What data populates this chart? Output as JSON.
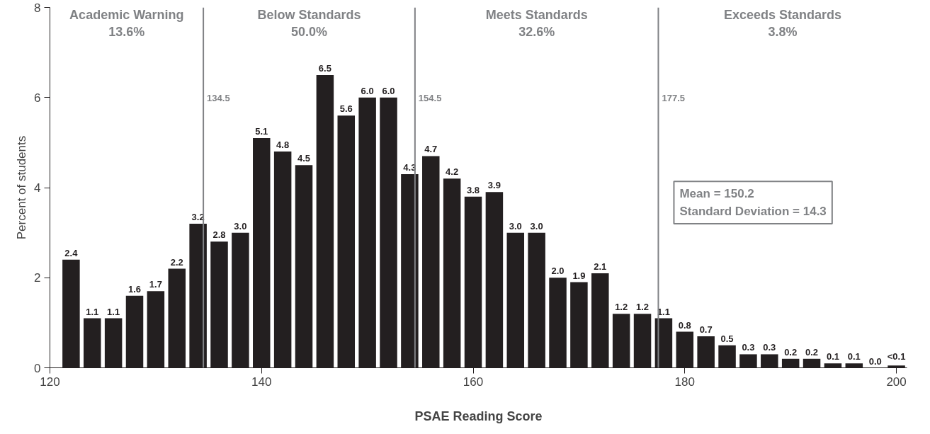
{
  "chart_data": {
    "type": "bar",
    "xlabel": "PSAE Reading Score",
    "ylabel": "Percent of students",
    "x": [
      122,
      124,
      126,
      128,
      130,
      132,
      134,
      136,
      138,
      140,
      142,
      144,
      146,
      148,
      150,
      152,
      154,
      156,
      158,
      160,
      162,
      164,
      166,
      168,
      170,
      172,
      174,
      176,
      178,
      180,
      182,
      184,
      186,
      188,
      190,
      192,
      194,
      196,
      198,
      200
    ],
    "values": [
      2.4,
      1.1,
      1.1,
      1.6,
      1.7,
      2.2,
      3.2,
      2.8,
      3.0,
      5.1,
      4.8,
      4.5,
      6.5,
      5.6,
      6.0,
      6.0,
      4.3,
      4.7,
      4.2,
      3.8,
      3.9,
      3.0,
      3.0,
      2.0,
      1.9,
      2.1,
      1.2,
      1.2,
      1.1,
      0.8,
      0.7,
      0.5,
      0.3,
      0.3,
      0.2,
      0.2,
      0.1,
      0.1,
      0.0,
      0.05
    ],
    "value_labels": [
      "2.4",
      "1.1",
      "1.1",
      "1.6",
      "1.7",
      "2.2",
      "3.2",
      "2.8",
      "3.0",
      "5.1",
      "4.8",
      "4.5",
      "6.5",
      "5.6",
      "6.0",
      "6.0",
      "4.3",
      "4.7",
      "4.2",
      "3.8",
      "3.9",
      "3.0",
      "3.0",
      "2.0",
      "1.9",
      "2.1",
      "1.2",
      "1.2",
      "1.1",
      "0.8",
      "0.7",
      "0.5",
      "0.3",
      "0.3",
      "0.2",
      "0.2",
      "0.1",
      "0.1",
      "0.0",
      "<0.1"
    ],
    "color": "#231f20",
    "xlim": [
      120,
      201
    ],
    "xticks": [
      120,
      140,
      160,
      180,
      200
    ],
    "ylim": [
      0,
      8
    ],
    "yticks": [
      0,
      2,
      4,
      6,
      8
    ],
    "grid": false,
    "ref_lines": [
      {
        "axis": "x",
        "value": 134.5,
        "label": "134.5",
        "color": "#808285"
      },
      {
        "axis": "x",
        "value": 154.5,
        "label": "154.5",
        "color": "#808285"
      },
      {
        "axis": "x",
        "value": 177.5,
        "label": "177.5",
        "color": "#808285"
      }
    ],
    "annotations": [
      "Academic Warning\n13.6%",
      "Below Standards\n50.0%",
      "Meets Standards\n32.6%",
      "Exceeds Standards\n3.8%",
      "Mean = 150.2\nStandard Deviation = 14.3"
    ]
  }
}
